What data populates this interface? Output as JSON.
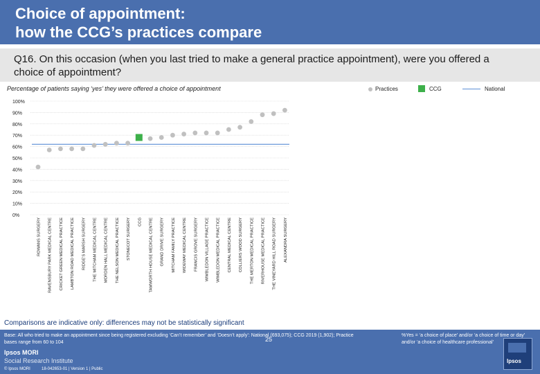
{
  "header": {
    "title": "Choice of appointment:\nhow the CCG’s practices compare"
  },
  "question": "Q16. On this occasion (when you last tried to make a general practice appointment), were you offered a choice of appointment?",
  "subtitle": "Percentage of patients saying ‘yes’ they were offered a choice of appointment",
  "legend": {
    "practices": "Practices",
    "ccg": "CCG",
    "national": "National"
  },
  "colors": {
    "practice": "#c0c0c0",
    "ccg": "#3db04a",
    "national": "#5b8ed6",
    "header": "#4a6fae"
  },
  "chart_data": {
    "type": "scatter",
    "title": "Percentage of patients saying ‘yes’ they were offered a choice of appointment",
    "xlabel": "",
    "ylabel": "",
    "ylim": [
      0,
      100
    ],
    "yticks": [
      0,
      10,
      20,
      30,
      40,
      50,
      60,
      70,
      80,
      90,
      100
    ],
    "ytick_suffix": "%",
    "national_value": 62,
    "categories": [
      "ROWANS SURGERY",
      "RAVENSBURY PARK MEDICAL CENTRE",
      "CRICKET GREEN MEDICAL PRACTICE",
      "LAMBTON ROAD MEDICAL PRACTICE",
      "RIDGE'S MARSH SURGERY",
      "THE MITCHAM MEDICAL CENTRE",
      "MORDEN HALL MEDICAL CENTRE",
      "THE NELSON MEDICAL PRACTICE",
      "STONECOT SURGERY",
      "CCG",
      "TAMWORTH HOUSE MEDICAL CENTRE",
      "GRAND DRIVE SURGERY",
      "MITCHAM FAMILY PRACTICE",
      "WIDEWAY MEDICAL CENTRE",
      "FRANCIS GROVE SURGERY",
      "WIMBLEDON VILLAGE PRACTICE",
      "WIMBLEDON MEDICAL PRACTICE",
      "CENTRAL MEDICAL CENTRE",
      "COLLIERS WOOD SURGERY",
      "THE MERTON MEDICAL PRACTICE",
      "RIVERHOUSE MEDICAL PRACTICE",
      "THE VINEYARD HILL ROAD SURGERY",
      "ALEXANDRA SURGERY"
    ],
    "values": [
      42,
      57,
      58,
      58,
      58,
      61,
      62,
      63,
      63,
      68,
      67,
      68,
      70,
      71,
      72,
      72,
      72,
      75,
      77,
      82,
      88,
      89,
      92
    ],
    "ccg_index": 9
  },
  "footnote": "Comparisons are indicative only: differences may not be statistically significant",
  "footer": {
    "base": "Base: All who tried to make an appointment since being registered excluding ‘Can’t remember’ and ‘Doesn’t apply’: National (693,075); CCG 2019 (1,902); Practice bases range from 60 to 104",
    "note": "%Yes = ‘a choice of place’ and/or ‘a choice of time or day’ and/or ‘a choice of healthcare professional’",
    "brand1": "Ipsos MORI",
    "brand2": "Social Research Institute",
    "copyright": "© Ipsos MORI",
    "job": "18-042653-01 | Version 1 | Public",
    "page": "25"
  }
}
